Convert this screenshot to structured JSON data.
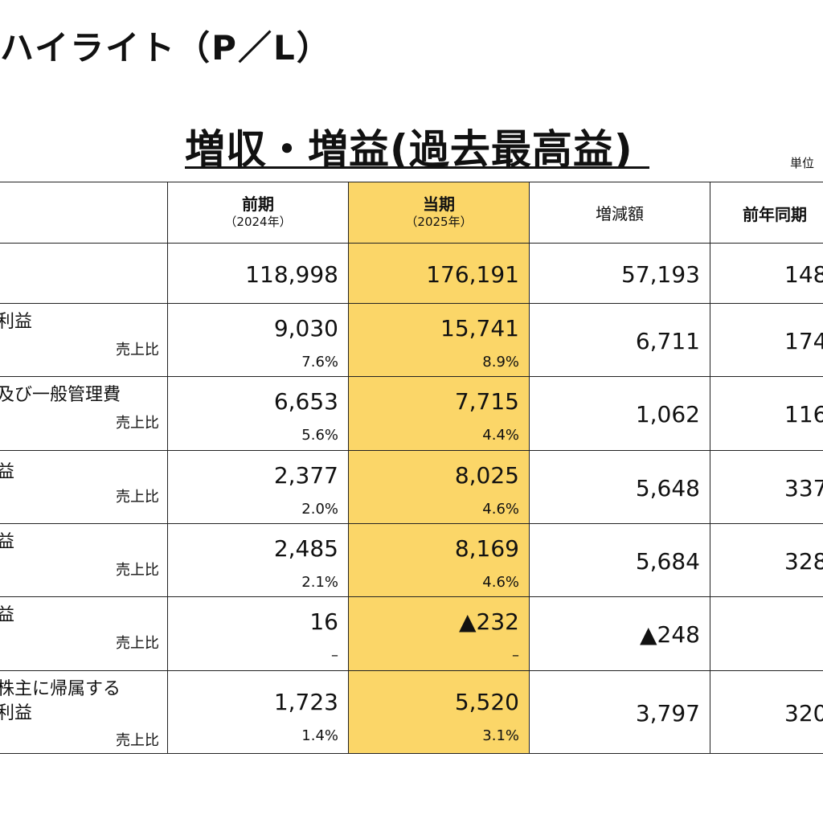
{
  "page_title": "ハイライト（P／L）",
  "headline": "増収・増益(過去最高益)",
  "unit_label": "単位",
  "table": {
    "headers": {
      "prev": {
        "main": "前期",
        "sub": "（2024年）"
      },
      "cur": {
        "main": "当期",
        "sub": "（2025年）"
      },
      "diff": "増減額",
      "yoy": "前年同期"
    },
    "rows": [
      {
        "label_lines": [
          ""
        ],
        "ratio_label": "",
        "prev": "118,998",
        "prev_ratio": "",
        "cur": "176,191",
        "cur_ratio": "",
        "diff": "57,193",
        "yoy": "148"
      },
      {
        "label_lines": [
          "利益"
        ],
        "ratio_label": "売上比",
        "prev": "9,030",
        "prev_ratio": "7.6%",
        "cur": "15,741",
        "cur_ratio": "8.9%",
        "diff": "6,711",
        "yoy": "174"
      },
      {
        "label_lines": [
          "及び一般管理費"
        ],
        "ratio_label": "売上比",
        "prev": "6,653",
        "prev_ratio": "5.6%",
        "cur": "7,715",
        "cur_ratio": "4.4%",
        "diff": "1,062",
        "yoy": "116"
      },
      {
        "label_lines": [
          "益"
        ],
        "ratio_label": "売上比",
        "prev": "2,377",
        "prev_ratio": "2.0%",
        "cur": "8,025",
        "cur_ratio": "4.6%",
        "diff": "5,648",
        "yoy": "337"
      },
      {
        "label_lines": [
          "益"
        ],
        "ratio_label": "売上比",
        "prev": "2,485",
        "prev_ratio": "2.1%",
        "cur": "8,169",
        "cur_ratio": "4.6%",
        "diff": "5,684",
        "yoy": "328"
      },
      {
        "label_lines": [
          "益"
        ],
        "ratio_label": "売上比",
        "prev": "16",
        "prev_ratio": "–",
        "cur": "▲232",
        "cur_ratio": "–",
        "diff": "▲248",
        "yoy": ""
      },
      {
        "label_lines": [
          "株主に帰属する",
          "利益"
        ],
        "ratio_label": "売上比",
        "prev": "1,723",
        "prev_ratio": "1.4%",
        "cur": "5,520",
        "cur_ratio": "3.1%",
        "diff": "3,797",
        "yoy": "320"
      }
    ]
  },
  "colors": {
    "highlight": "#fbd668",
    "border": "#222222",
    "text": "#111111"
  }
}
